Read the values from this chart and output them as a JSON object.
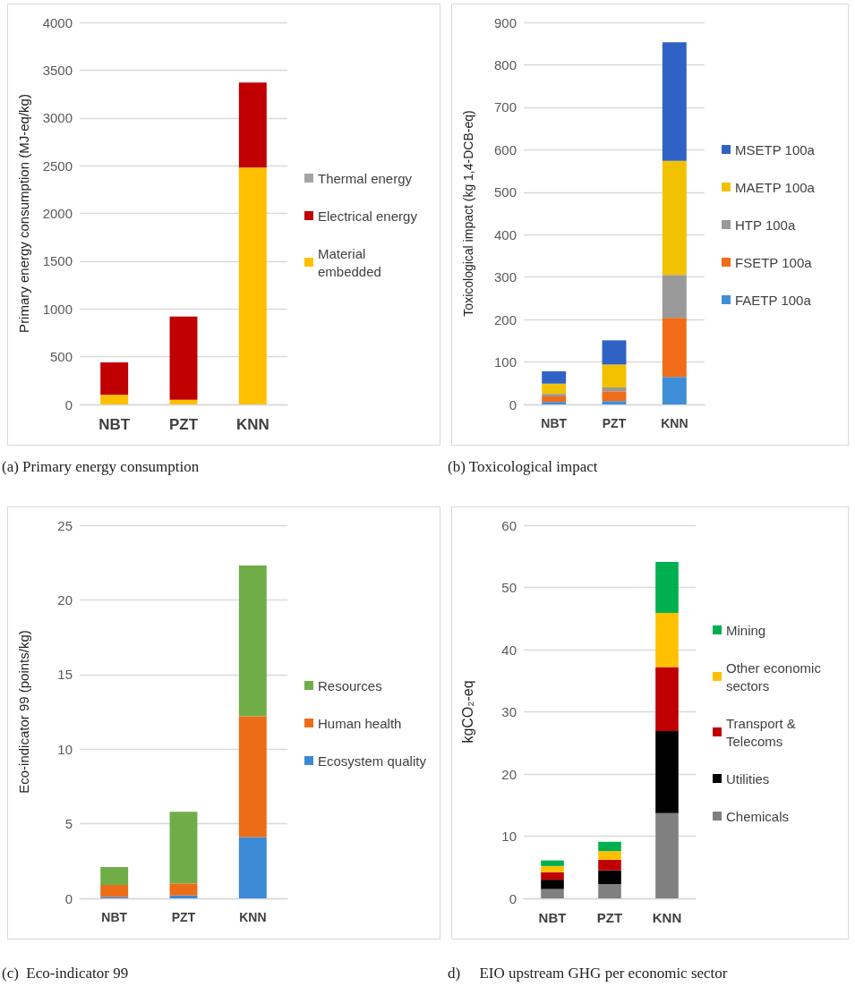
{
  "chart_data": [
    {
      "type": "bar",
      "stacked": true,
      "categories": [
        "NBT",
        "PZT",
        "KNN"
      ],
      "ylabel": "Primary energy consumption (MJ-eq/kg)",
      "ylim": [
        0,
        4000
      ],
      "yticks": [
        0,
        500,
        1000,
        1500,
        2000,
        2500,
        3000,
        3500,
        4000
      ],
      "grid": "y",
      "legend": "right",
      "annotations": [
        "(a) Primary energy consumption"
      ],
      "series": [
        {
          "name": "Material embedded",
          "color": "#ffc000",
          "values": [
            100,
            50,
            2480
          ]
        },
        {
          "name": "Electrical energy",
          "color": "#c00000",
          "values": [
            340,
            870,
            890
          ]
        },
        {
          "name": "Thermal energy",
          "color": "#a5a5a5",
          "values": [
            0,
            0,
            0
          ]
        }
      ]
    },
    {
      "type": "bar",
      "stacked": true,
      "categories": [
        "NBT",
        "PZT",
        "KNN"
      ],
      "ylabel": "Toxicological impact (kg 1,4-DCB-eq)",
      "ylim": [
        0,
        900
      ],
      "yticks": [
        0,
        100,
        200,
        300,
        400,
        500,
        600,
        700,
        800,
        900
      ],
      "grid": "y",
      "legend": "right",
      "annotations": [
        "(b) Toxicological impact"
      ],
      "series": [
        {
          "name": "FAETP 100a",
          "color": "#3f8fd8",
          "values": [
            6,
            8,
            65
          ]
        },
        {
          "name": "FSETP 100a",
          "color": "#f06c18",
          "values": [
            13,
            23,
            139
          ]
        },
        {
          "name": "HTP 100a",
          "color": "#999999",
          "values": [
            6,
            9,
            101
          ]
        },
        {
          "name": "MAETP 100a",
          "color": "#f2c200",
          "values": [
            24,
            54,
            269
          ]
        },
        {
          "name": "MSETP 100a",
          "color": "#2f62c4",
          "values": [
            29,
            57,
            279
          ]
        }
      ]
    },
    {
      "type": "bar",
      "stacked": true,
      "categories": [
        "NBT",
        "PZT",
        "KNN"
      ],
      "ylabel": "Eco-indicator 99 (points/kg)",
      "ylim": [
        0,
        25
      ],
      "yticks": [
        0,
        5,
        10,
        15,
        20,
        25
      ],
      "grid": "y",
      "legend": "right",
      "annotations": [
        "(c)  Eco-indicator 99"
      ],
      "series": [
        {
          "name": "Ecosystem quality",
          "color": "#3c8ad6",
          "values": [
            0.1,
            0.2,
            4.1
          ]
        },
        {
          "name": "Human health",
          "color": "#ec6c18",
          "values": [
            0.8,
            0.8,
            8.1
          ]
        },
        {
          "name": "Resources",
          "color": "#70ad47",
          "values": [
            1.2,
            4.8,
            10.1
          ]
        }
      ]
    },
    {
      "type": "bar",
      "stacked": true,
      "categories": [
        "NBT",
        "PZT",
        "KNN"
      ],
      "ylabel": "kgCO₂-eq",
      "ylim": [
        0,
        60
      ],
      "yticks": [
        0,
        10,
        20,
        30,
        40,
        50,
        60
      ],
      "grid": "y",
      "legend": "right",
      "annotations": [
        "d)     EIO upstream GHG per economic sector"
      ],
      "series": [
        {
          "name": "Chemicals",
          "color": "#808080",
          "values": [
            1.5,
            2.3,
            13.7
          ]
        },
        {
          "name": "Utilities",
          "color": "#000000",
          "values": [
            1.5,
            2.2,
            13.2
          ]
        },
        {
          "name": "Transport & Telecoms",
          "color": "#c00000",
          "values": [
            1.2,
            1.7,
            10.3
          ]
        },
        {
          "name": "Other economic sectors",
          "color": "#ffc000",
          "values": [
            1.0,
            1.4,
            8.7
          ]
        },
        {
          "name": "Mining",
          "color": "#00b050",
          "values": [
            0.9,
            1.5,
            8.2
          ]
        }
      ]
    }
  ]
}
